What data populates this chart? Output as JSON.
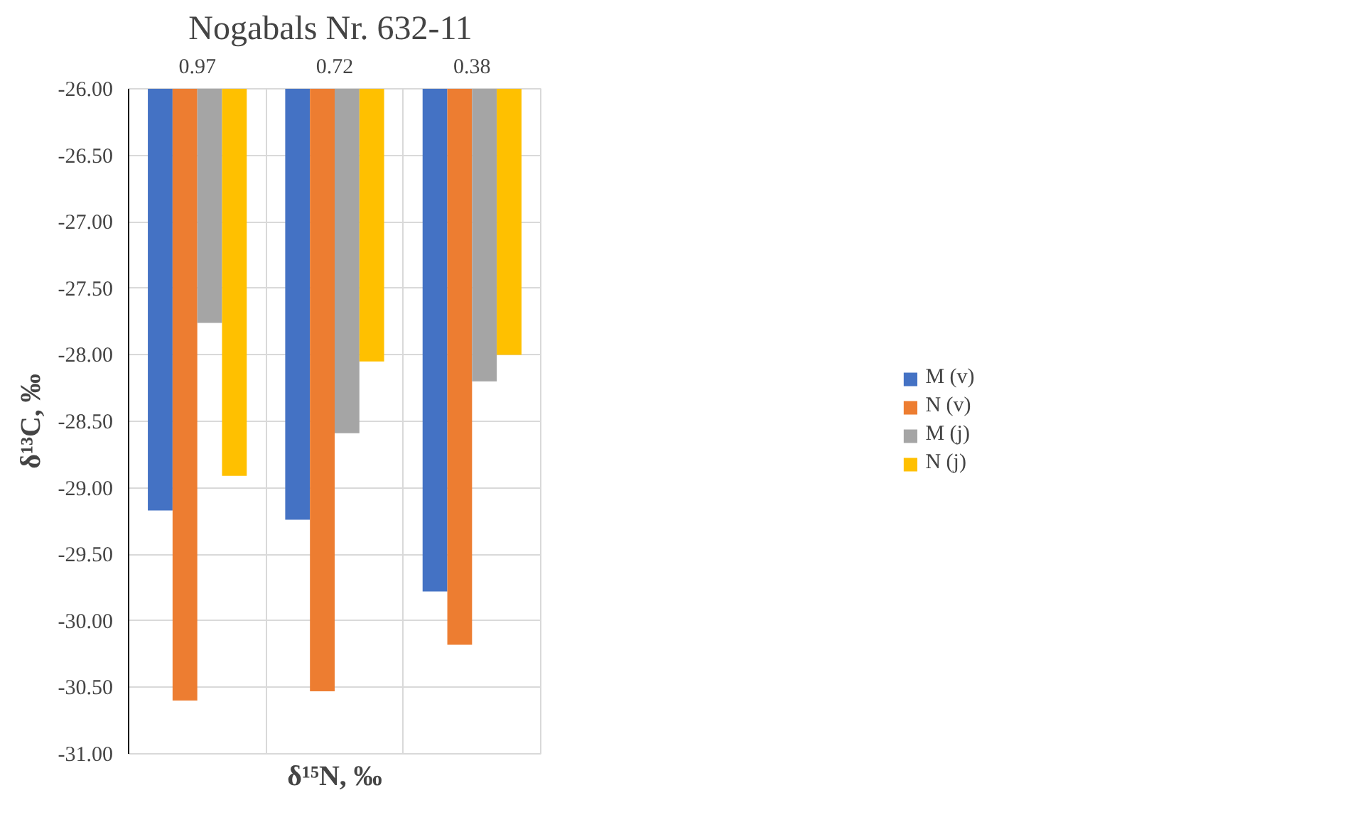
{
  "chart_data": {
    "type": "bar",
    "title": "Nogabals  Nr. 632-11",
    "xlabel": "δ¹⁵N, ‰",
    "ylabel": "δ¹³C, ‰",
    "categories": [
      "0.97",
      "0.72",
      "0.38"
    ],
    "series": [
      {
        "name": "M (v)",
        "color": "#4472c4",
        "values": [
          -29.17,
          -29.24,
          -29.78
        ]
      },
      {
        "name": "N (v)",
        "color": "#ed7d31",
        "values": [
          -30.6,
          -30.53,
          -30.18
        ]
      },
      {
        "name": "M (j)",
        "color": "#a5a5a5",
        "values": [
          -27.76,
          -28.59,
          -28.2
        ]
      },
      {
        "name": "N (j)",
        "color": "#ffc000",
        "values": [
          -28.91,
          -28.05,
          -28.0
        ]
      }
    ],
    "ylim": [
      -31,
      -26
    ],
    "yticks": [
      {
        "value": -26,
        "label": "-26.00"
      },
      {
        "value": -26.5,
        "label": "-26.50"
      },
      {
        "value": -27,
        "label": "-27.00"
      },
      {
        "value": -27.5,
        "label": "-27.50"
      },
      {
        "value": -28,
        "label": "-28.00"
      },
      {
        "value": -28.5,
        "label": "-28.50"
      },
      {
        "value": -29,
        "label": "-29.00"
      },
      {
        "value": -29.5,
        "label": "-29.50"
      },
      {
        "value": -30,
        "label": "-30.00"
      },
      {
        "value": -30.5,
        "label": "-30.50"
      },
      {
        "value": -31,
        "label": "-31.00"
      }
    ],
    "grid": true,
    "legend": "right"
  }
}
